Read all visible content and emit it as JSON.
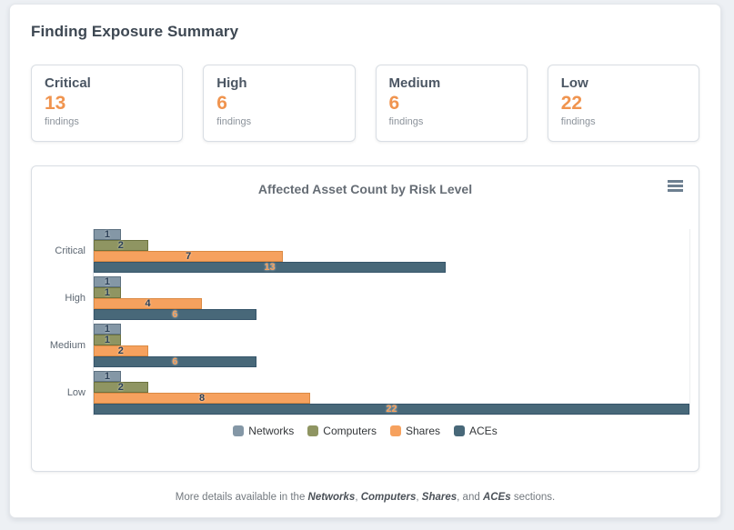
{
  "page": {
    "title": "Finding Exposure Summary"
  },
  "summary_cards": [
    {
      "label": "Critical",
      "count": 13,
      "unit": "findings"
    },
    {
      "label": "High",
      "count": 6,
      "unit": "findings"
    },
    {
      "label": "Medium",
      "count": 6,
      "unit": "findings"
    },
    {
      "label": "Low",
      "count": 22,
      "unit": "findings"
    }
  ],
  "colors": {
    "accent_orange": "#f0944f",
    "page_background": "#edf0f4",
    "card_border": "#d9dee4",
    "title_text": "#3d4752"
  },
  "chart_data": {
    "type": "bar",
    "orientation": "horizontal",
    "title": "Affected Asset Count by Risk Level",
    "categories": [
      "Critical",
      "High",
      "Medium",
      "Low"
    ],
    "series": [
      {
        "name": "Networks",
        "color": "#8497a6",
        "border": "#5d7181",
        "label_color": "#2c4158",
        "values": [
          1,
          1,
          1,
          1
        ]
      },
      {
        "name": "Computers",
        "color": "#8f9562",
        "border": "#6d7340",
        "label_color": "#2c4158",
        "values": [
          2,
          1,
          1,
          2
        ]
      },
      {
        "name": "Shares",
        "color": "#f6a15e",
        "border": "#db8a43",
        "label_color": "#2c4158",
        "values": [
          7,
          4,
          2,
          8
        ]
      },
      {
        "name": "ACEs",
        "color": "#486879",
        "border": "#36556a",
        "label_color": "#f6a15e",
        "values": [
          13,
          6,
          6,
          22
        ]
      }
    ],
    "xlim": [
      0,
      22
    ],
    "grid": false,
    "data_labels": true,
    "legend_position": "bottom",
    "menu_icon": "hamburger-icon"
  },
  "footer": {
    "segments": [
      {
        "t": "More details available in the ",
        "b": false
      },
      {
        "t": "Networks",
        "b": true
      },
      {
        "t": ", ",
        "b": false
      },
      {
        "t": "Computers",
        "b": true
      },
      {
        "t": ", ",
        "b": false
      },
      {
        "t": "Shares",
        "b": true
      },
      {
        "t": ", and ",
        "b": false
      },
      {
        "t": "ACEs",
        "b": true
      },
      {
        "t": " sections.",
        "b": false
      }
    ]
  }
}
